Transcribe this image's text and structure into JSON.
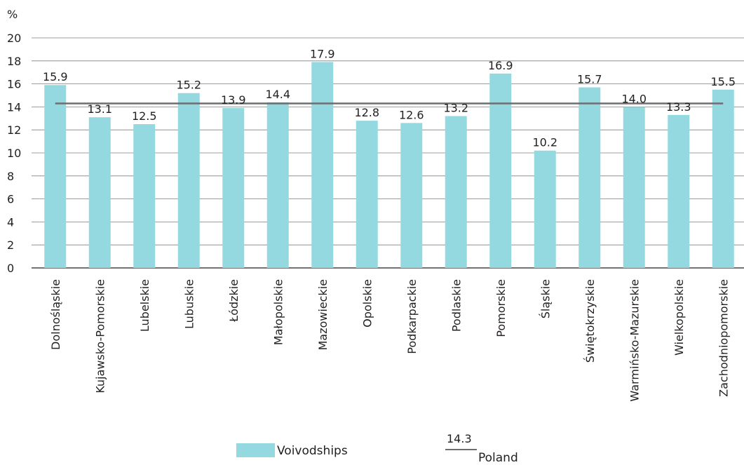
{
  "chart_data": {
    "type": "bar",
    "y_unit_label": "%",
    "ylim": [
      0,
      20
    ],
    "yticks": [
      0,
      2,
      4,
      6,
      8,
      10,
      12,
      14,
      16,
      18,
      20
    ],
    "grid": true,
    "categories": [
      "Dolnośląskie",
      "Kujawsko-Pomorskie",
      "Lubelskie",
      "Lubuskie",
      "Łódzkie",
      "Małopolskie",
      "Mazowieckie",
      "Opolskie",
      "Podkarpackie",
      "Podlaskie",
      "Pomorskie",
      "Śląskie",
      "Świętokrzyskie",
      "Warmińsko-Mazurskie",
      "Wielkopolskie",
      "Zachodniopomorskie"
    ],
    "series": [
      {
        "name": "Voivodships",
        "type": "bar",
        "color": "#95d9e0",
        "values": [
          15.9,
          13.1,
          12.5,
          15.2,
          13.9,
          14.4,
          17.9,
          12.8,
          12.6,
          13.2,
          16.9,
          10.2,
          15.7,
          14.0,
          13.3,
          15.5
        ],
        "value_labels": [
          "15.9",
          "13.1",
          "12.5",
          "15.2",
          "13.9",
          "14.4",
          "17.9",
          "12.8",
          "12.6",
          "13.2",
          "16.9",
          "10.2",
          "15.7",
          "14.0",
          "13.3",
          "15.5"
        ]
      },
      {
        "name": "Poland",
        "type": "reference-line",
        "color": "#6d6e70",
        "value": 14.3,
        "value_label": "14.3"
      }
    ],
    "legend_position": "bottom"
  },
  "colors": {
    "bar": "#95d9e0",
    "line": "#6d6e70",
    "grid": "#7f7f7f",
    "text": "#231f20"
  }
}
